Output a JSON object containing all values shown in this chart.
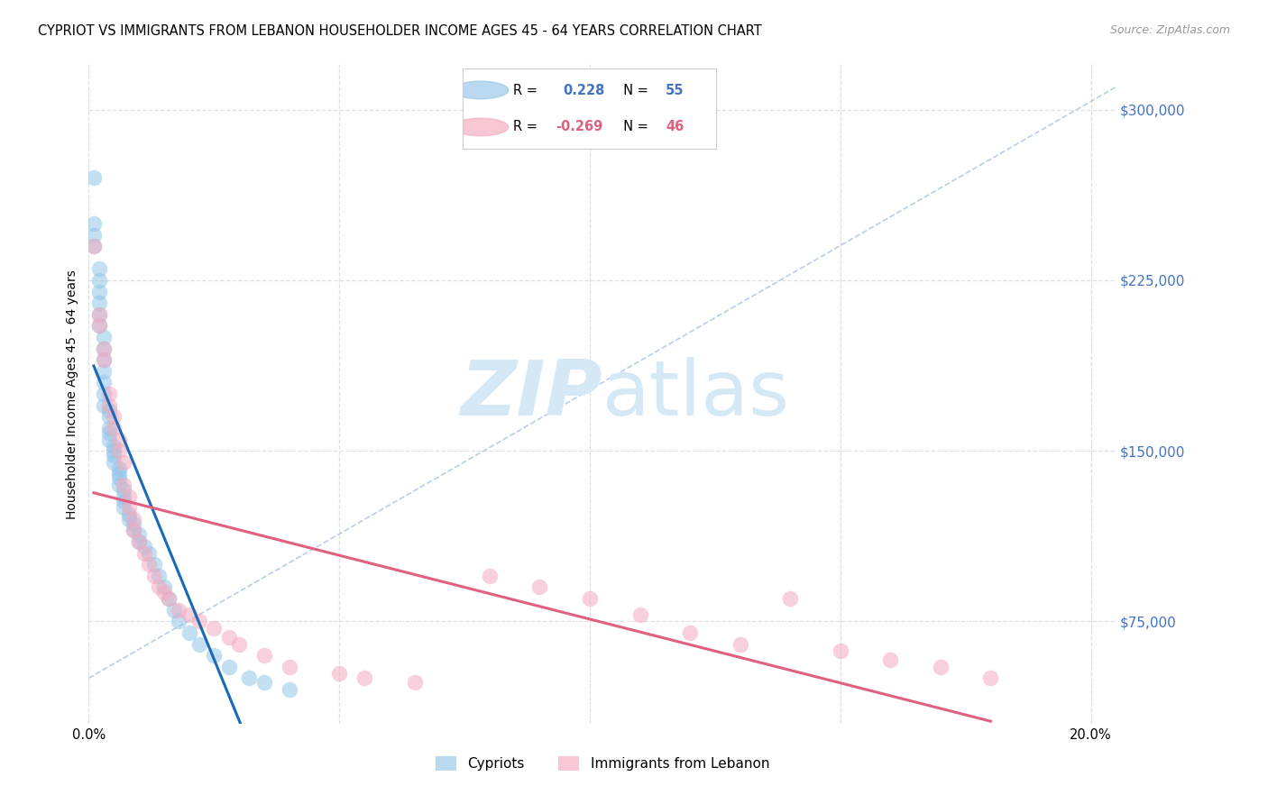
{
  "title": "CYPRIOT VS IMMIGRANTS FROM LEBANON HOUSEHOLDER INCOME AGES 45 - 64 YEARS CORRELATION CHART",
  "source": "Source: ZipAtlas.com",
  "ylabel": "Householder Income Ages 45 - 64 years",
  "xlim": [
    0.0,
    0.205
  ],
  "ylim": [
    30000,
    320000
  ],
  "yticks": [
    75000,
    150000,
    225000,
    300000
  ],
  "ytick_labels": [
    "$75,000",
    "$150,000",
    "$225,000",
    "$300,000"
  ],
  "xticks": [
    0.0,
    0.05,
    0.1,
    0.15,
    0.2
  ],
  "xtick_labels": [
    "0.0%",
    "",
    "",
    "",
    "20.0%"
  ],
  "cypriot_color": "#92c5e8",
  "lebanon_color": "#f4aabe",
  "cypriot_line_color": "#1a6ab5",
  "lebanon_line_color": "#e06080",
  "ref_line_color": "#b0c8e8",
  "legend_box_color": "#f0f0f0",
  "cypriot_label": "Cypriots",
  "lebanon_label": "Immigrants from Lebanon",
  "bg_color": "#ffffff",
  "grid_color": "#e0e0e0",
  "watermark_zip_color": "#d5e8f5",
  "watermark_atlas_color": "#d5e8f5",
  "ytick_color": "#4472c4",
  "cypriot_x": [
    0.001,
    0.001,
    0.001,
    0.001,
    0.002,
    0.002,
    0.002,
    0.002,
    0.002,
    0.002,
    0.003,
    0.003,
    0.003,
    0.003,
    0.003,
    0.003,
    0.003,
    0.004,
    0.004,
    0.004,
    0.004,
    0.004,
    0.005,
    0.005,
    0.005,
    0.005,
    0.006,
    0.006,
    0.006,
    0.006,
    0.007,
    0.007,
    0.007,
    0.007,
    0.008,
    0.008,
    0.009,
    0.009,
    0.01,
    0.01,
    0.011,
    0.012,
    0.013,
    0.014,
    0.015,
    0.016,
    0.017,
    0.018,
    0.02,
    0.022,
    0.025,
    0.028,
    0.032,
    0.035,
    0.04
  ],
  "cypriot_y": [
    270000,
    250000,
    245000,
    240000,
    230000,
    225000,
    220000,
    215000,
    210000,
    205000,
    200000,
    195000,
    190000,
    185000,
    180000,
    175000,
    170000,
    168000,
    165000,
    160000,
    158000,
    155000,
    152000,
    150000,
    148000,
    145000,
    142000,
    140000,
    138000,
    135000,
    133000,
    130000,
    128000,
    125000,
    122000,
    120000,
    118000,
    115000,
    113000,
    110000,
    108000,
    105000,
    100000,
    95000,
    90000,
    85000,
    80000,
    75000,
    70000,
    65000,
    60000,
    55000,
    50000,
    48000,
    45000
  ],
  "lebanon_x": [
    0.001,
    0.002,
    0.002,
    0.003,
    0.003,
    0.004,
    0.004,
    0.005,
    0.005,
    0.006,
    0.006,
    0.007,
    0.007,
    0.008,
    0.008,
    0.009,
    0.009,
    0.01,
    0.011,
    0.012,
    0.013,
    0.014,
    0.015,
    0.016,
    0.018,
    0.02,
    0.022,
    0.025,
    0.028,
    0.03,
    0.035,
    0.04,
    0.05,
    0.055,
    0.065,
    0.08,
    0.09,
    0.1,
    0.11,
    0.12,
    0.13,
    0.14,
    0.15,
    0.16,
    0.17,
    0.18
  ],
  "lebanon_y": [
    240000,
    210000,
    205000,
    195000,
    190000,
    175000,
    170000,
    165000,
    160000,
    155000,
    150000,
    145000,
    135000,
    130000,
    125000,
    120000,
    115000,
    110000,
    105000,
    100000,
    95000,
    90000,
    88000,
    85000,
    80000,
    78000,
    75000,
    72000,
    68000,
    65000,
    60000,
    55000,
    52000,
    50000,
    48000,
    95000,
    90000,
    85000,
    78000,
    70000,
    65000,
    85000,
    62000,
    58000,
    55000,
    50000
  ]
}
